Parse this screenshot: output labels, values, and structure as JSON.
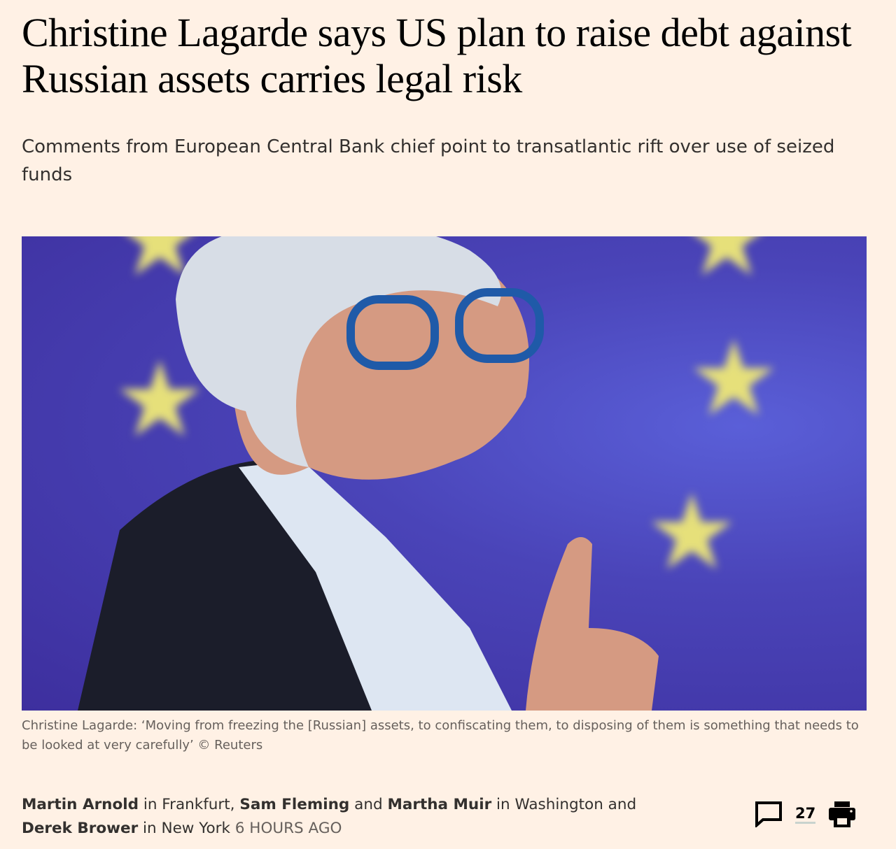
{
  "article": {
    "headline": "Christine Lagarde says US plan to raise debt against Russian assets carries legal risk",
    "standfirst": "Comments from European Central Bank chief point to transatlantic rift over use of seized funds",
    "image_caption": "Christine Lagarde: ‘Moving from freezing the [Russian] assets, to confiscating them, to disposing of them is something that needs to be looked at very carefully’ © Reuters"
  },
  "byline": {
    "author1": "Martin Arnold",
    "loc1": " in Frankfurt, ",
    "author2": "Sam Fleming",
    "and1": " and ",
    "author3": "Martha Muir",
    "loc2": " in Washington and ",
    "author4": "Derek Brower",
    "loc3": " in New York ",
    "timestamp": "6 hours ago"
  },
  "tools": {
    "comments_icon": "speech-bubble-icon",
    "comment_count": "27",
    "print_icon": "printer-icon"
  },
  "colors": {
    "background": "#FFF1E5",
    "text": "#33302e",
    "caption": "#66605c"
  }
}
